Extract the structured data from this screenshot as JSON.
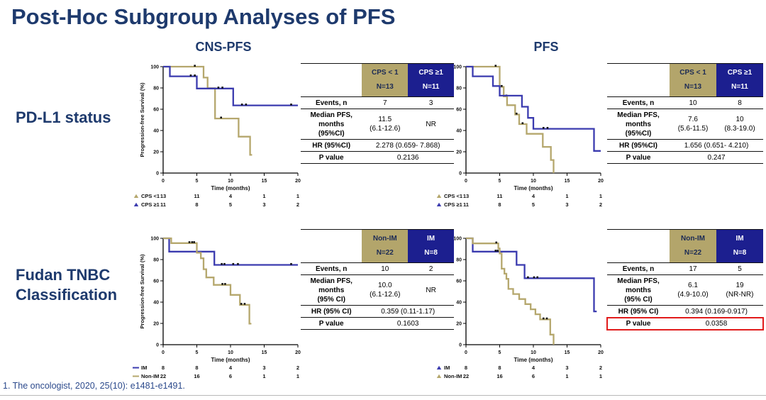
{
  "title": "Post-Hoc Subgroup Analyses of PFS",
  "footnote": "1. The oncologist, 2020, 25(10): e1481-e1491.",
  "columns": {
    "left": "CNS-PFS",
    "right": "PFS"
  },
  "row_labels": {
    "top": "PD-L1 status",
    "bottom": "Fudan TNBC\nClassification"
  },
  "colors": {
    "navy_text": "#1e3a6d",
    "curve_blue": "#3b3baf",
    "curve_tan": "#b5a76d",
    "header_tan_bg": "#b3a56b",
    "header_blue_bg": "#1c1f8f",
    "highlight_red": "#e11b1b"
  },
  "tables": [
    {
      "header": {
        "col1": "CPS < 1\nN=13",
        "col2": "CPS ≥1\nN=11"
      },
      "rows": {
        "events": {
          "label": "Events, n",
          "v1": "7",
          "v2": "3"
        },
        "median": {
          "label": "Median PFS,\nmonths\n(95%CI)",
          "v1": "11.5\n(6.1-12.6)",
          "v2": "NR"
        },
        "hr": {
          "label": "HR (95%CI)",
          "value": "2.278 (0.659- 7.868)"
        },
        "p": {
          "label": "P value",
          "value": "0.2136"
        }
      }
    },
    {
      "header": {
        "col1": "CPS < 1\nN=13",
        "col2": "CPS ≥1\nN=11"
      },
      "rows": {
        "events": {
          "label": "Events, n",
          "v1": "10",
          "v2": "8"
        },
        "median": {
          "label": "Median PFS,\nmonths\n(95%CI)",
          "v1": "7.6\n(5.6-11.5)",
          "v2": "10\n(8.3-19.0)"
        },
        "hr": {
          "label": "HR (95%CI)",
          "value": "1.656 (0.651- 4.210)"
        },
        "p": {
          "label": "P value",
          "value": "0.247"
        }
      }
    },
    {
      "header": {
        "col1": "Non-IM\nN=22",
        "col2": "IM\nN=8"
      },
      "rows": {
        "events": {
          "label": "Events, n",
          "v1": "10",
          "v2": "2"
        },
        "median": {
          "label": "Median PFS,\nmonths\n(95% CI)",
          "v1": "10.0\n(6.1-12.6)",
          "v2": "NR"
        },
        "hr": {
          "label": "HR (95% CI)",
          "value": "0.359 (0.11-1.17)"
        },
        "p": {
          "label": "P value",
          "value": "0.1603"
        }
      }
    },
    {
      "header": {
        "col1": "Non-IM\nN=22",
        "col2": "IM\nN=8"
      },
      "rows": {
        "events": {
          "label": "Events, n",
          "v1": "17",
          "v2": "5"
        },
        "median": {
          "label": "Median PFS,\nmonths\n(95% CI)",
          "v1": "6.1\n(4.9-10.0)",
          "v2": "19\n(NR-NR)"
        },
        "hr": {
          "label": "HR (95% CI)",
          "value": "0.394 (0.169-0.917)"
        },
        "p": {
          "label": "P value",
          "value": "0.0358",
          "highlight": true
        }
      }
    }
  ],
  "chart_data": [
    {
      "id": "cnspfs-pdl1",
      "type": "line",
      "subtype": "kaplan-meier-step",
      "column": "CNS-PFS",
      "group": "PD-L1 status",
      "xlabel": "Time (months)",
      "ylabel": "Progression-free Survival (%)",
      "xlim": [
        0,
        20
      ],
      "ylim": [
        0,
        100
      ],
      "xticks": [
        0,
        5,
        10,
        15,
        20
      ],
      "yticks": [
        0,
        20,
        40,
        60,
        80,
        100
      ],
      "series": [
        {
          "name": "CPS <1",
          "color": "#b5a76d",
          "steps": [
            [
              0,
              100
            ],
            [
              6,
              100
            ],
            [
              6,
              89.7
            ],
            [
              6.6,
              89.7
            ],
            [
              6.6,
              79.8
            ],
            [
              7.7,
              79.8
            ],
            [
              7.7,
              51.3
            ],
            [
              11.2,
              51.3
            ],
            [
              11.2,
              34.2
            ],
            [
              12.9,
              34.2
            ],
            [
              12.9,
              17.1
            ],
            [
              13.2,
              17.1
            ]
          ],
          "censors": [
            [
              4.7,
              100
            ],
            [
              8.6,
              51.3
            ]
          ]
        },
        {
          "name": "CPS ≥1",
          "color": "#3b3baf",
          "steps": [
            [
              0,
              100
            ],
            [
              1,
              100
            ],
            [
              1,
              90.9
            ],
            [
              5,
              90.9
            ],
            [
              5,
              79.5
            ],
            [
              10.4,
              79.5
            ],
            [
              10.4,
              63.6
            ],
            [
              20,
              63.6
            ]
          ],
          "censors": [
            [
              4.1,
              90.9
            ],
            [
              4.7,
              90.9
            ],
            [
              8.2,
              79.5
            ],
            [
              8.8,
              79.5
            ],
            [
              11.7,
              63.6
            ],
            [
              12.3,
              63.6
            ],
            [
              19,
              63.6
            ]
          ]
        }
      ],
      "risk_table": {
        "rows": [
          {
            "name": "CPS <1",
            "marker": "triangle",
            "color": "#b5a76d",
            "counts": [
              "13",
              "11",
              "4",
              "1",
              "1"
            ]
          },
          {
            "name": "CPS ≥1",
            "marker": "triangle",
            "color": "#3b3baf",
            "counts": [
              "11",
              "8",
              "5",
              "3",
              "2"
            ]
          }
        ]
      }
    },
    {
      "id": "pfs-pdl1",
      "type": "line",
      "subtype": "kaplan-meier-step",
      "column": "PFS",
      "group": "PD-L1 status",
      "xlabel": "Time (months)",
      "ylabel": "Progression-free Survival (%)",
      "xlim": [
        0,
        20
      ],
      "ylim": [
        0,
        100
      ],
      "xticks": [
        0,
        5,
        10,
        15,
        20
      ],
      "yticks": [
        0,
        20,
        40,
        60,
        80,
        100
      ],
      "series": [
        {
          "name": "CPS <1",
          "color": "#b5a76d",
          "steps": [
            [
              0,
              100
            ],
            [
              5,
              100
            ],
            [
              5,
              81
            ],
            [
              5.6,
              81
            ],
            [
              5.6,
              72
            ],
            [
              6.1,
              72
            ],
            [
              6.1,
              63.8
            ],
            [
              7.3,
              63.8
            ],
            [
              7.3,
              55
            ],
            [
              7.9,
              55
            ],
            [
              7.9,
              46
            ],
            [
              9,
              46
            ],
            [
              9,
              36.9
            ],
            [
              11.4,
              36.9
            ],
            [
              11.4,
              24.6
            ],
            [
              12.6,
              24.6
            ],
            [
              12.6,
              12.3
            ],
            [
              13,
              12.3
            ],
            [
              13,
              0
            ]
          ],
          "censors": [
            [
              4.4,
              100
            ],
            [
              5.3,
              81
            ],
            [
              6,
              72
            ],
            [
              7.5,
              55
            ],
            [
              8.4,
              46
            ]
          ]
        },
        {
          "name": "CPS ≥1",
          "color": "#3b3baf",
          "steps": [
            [
              0,
              100
            ],
            [
              1,
              100
            ],
            [
              1,
              90.9
            ],
            [
              4,
              90.9
            ],
            [
              4,
              81.8
            ],
            [
              5,
              81.8
            ],
            [
              5,
              72.7
            ],
            [
              8.3,
              72.7
            ],
            [
              8.3,
              62.3
            ],
            [
              9.2,
              62.3
            ],
            [
              9.2,
              51.9
            ],
            [
              10,
              51.9
            ],
            [
              10,
              41.6
            ],
            [
              19,
              41.6
            ],
            [
              19,
              20.8
            ],
            [
              20,
              20.8
            ]
          ],
          "censors": [
            [
              11.5,
              41.6
            ],
            [
              12.1,
              41.6
            ]
          ]
        }
      ],
      "risk_table": {
        "rows": [
          {
            "name": "CPS <1",
            "marker": "triangle",
            "color": "#b5a76d",
            "counts": [
              "13",
              "11",
              "4",
              "1",
              "1"
            ]
          },
          {
            "name": "CPS ≥1",
            "marker": "triangle",
            "color": "#3b3baf",
            "counts": [
              "11",
              "8",
              "5",
              "3",
              "2"
            ]
          }
        ]
      }
    },
    {
      "id": "cnspfs-fudan",
      "type": "line",
      "subtype": "kaplan-meier-step",
      "column": "CNS-PFS",
      "group": "Fudan TNBC Classification",
      "xlabel": "Time (months)",
      "ylabel": "Progression-free Survival (%)",
      "xlim": [
        0,
        20
      ],
      "ylim": [
        0,
        100
      ],
      "xticks": [
        0,
        5,
        10,
        15,
        20
      ],
      "yticks": [
        0,
        20,
        40,
        60,
        80,
        100
      ],
      "series": [
        {
          "name": "IM",
          "color": "#3b3baf",
          "steps": [
            [
              0,
              100
            ],
            [
              0.9,
              100
            ],
            [
              0.9,
              87.5
            ],
            [
              7.6,
              87.5
            ],
            [
              7.6,
              75
            ],
            [
              20,
              75
            ]
          ],
          "censors": [
            [
              8.7,
              75
            ],
            [
              9.1,
              75
            ],
            [
              10.4,
              75
            ],
            [
              11.1,
              75
            ],
            [
              19,
              75
            ]
          ]
        },
        {
          "name": "Non-IM",
          "color": "#b5a76d",
          "steps": [
            [
              0,
              100
            ],
            [
              1.2,
              100
            ],
            [
              1.2,
              95.5
            ],
            [
              5,
              95.5
            ],
            [
              5,
              86.4
            ],
            [
              5.6,
              86.4
            ],
            [
              5.6,
              81.2
            ],
            [
              6,
              81.2
            ],
            [
              6,
              70.9
            ],
            [
              6.4,
              70.9
            ],
            [
              6.4,
              63.2
            ],
            [
              7.5,
              63.2
            ],
            [
              7.5,
              56.2
            ],
            [
              10,
              56.2
            ],
            [
              10,
              46.8
            ],
            [
              11.4,
              46.8
            ],
            [
              11.4,
              37.5
            ],
            [
              12.8,
              37.5
            ],
            [
              12.8,
              19.7
            ],
            [
              13.1,
              19.7
            ]
          ],
          "censors": [
            [
              3.9,
              95.5
            ],
            [
              4.3,
              95.5
            ],
            [
              4.6,
              95.5
            ],
            [
              8.8,
              56.2
            ],
            [
              9.2,
              56.2
            ],
            [
              11.6,
              37.5
            ],
            [
              12.1,
              37.5
            ]
          ]
        }
      ],
      "risk_table": {
        "rows": [
          {
            "name": "IM",
            "marker": "dash",
            "color": "#3b3baf",
            "counts": [
              "8",
              "8",
              "4",
              "3",
              "2"
            ]
          },
          {
            "name": "Non-IM",
            "marker": "dash",
            "color": "#b5a76d",
            "counts": [
              "22",
              "16",
              "6",
              "1",
              "1"
            ]
          }
        ]
      }
    },
    {
      "id": "pfs-fudan",
      "type": "line",
      "subtype": "kaplan-meier-step",
      "column": "PFS",
      "group": "Fudan TNBC Classification",
      "xlabel": "Time (months)",
      "ylabel": "Progression-free Survival (%)",
      "xlim": [
        0,
        20
      ],
      "ylim": [
        0,
        100
      ],
      "xticks": [
        0,
        5,
        10,
        15,
        20
      ],
      "yticks": [
        0,
        20,
        40,
        60,
        80,
        100
      ],
      "series": [
        {
          "name": "IM",
          "color": "#3b3baf",
          "steps": [
            [
              0,
              100
            ],
            [
              1,
              100
            ],
            [
              1,
              87.5
            ],
            [
              7.5,
              87.5
            ],
            [
              7.5,
              75
            ],
            [
              8.7,
              75
            ],
            [
              8.7,
              62.5
            ],
            [
              19,
              62.5
            ],
            [
              19,
              31.3
            ],
            [
              19.4,
              31.3
            ]
          ],
          "censors": [
            [
              4.4,
              87.5
            ],
            [
              4.7,
              87.5
            ],
            [
              9.2,
              62.5
            ],
            [
              10.1,
              62.5
            ],
            [
              10.6,
              62.5
            ]
          ]
        },
        {
          "name": "Non-IM",
          "color": "#b5a76d",
          "steps": [
            [
              0,
              100
            ],
            [
              1,
              100
            ],
            [
              1,
              95.2
            ],
            [
              4.8,
              95.2
            ],
            [
              4.8,
              90.5
            ],
            [
              5,
              90.5
            ],
            [
              5,
              85.7
            ],
            [
              5.3,
              85.7
            ],
            [
              5.3,
              71.4
            ],
            [
              5.7,
              71.4
            ],
            [
              5.7,
              66.7
            ],
            [
              6,
              66.7
            ],
            [
              6,
              61.9
            ],
            [
              6.3,
              61.9
            ],
            [
              6.3,
              52.4
            ],
            [
              7,
              52.4
            ],
            [
              7,
              47.6
            ],
            [
              7.9,
              47.6
            ],
            [
              7.9,
              42.9
            ],
            [
              8.8,
              42.9
            ],
            [
              8.8,
              38.1
            ],
            [
              9.6,
              38.1
            ],
            [
              9.6,
              33.3
            ],
            [
              10.3,
              33.3
            ],
            [
              10.3,
              28.6
            ],
            [
              11,
              28.6
            ],
            [
              11,
              23.8
            ],
            [
              12.5,
              23.8
            ],
            [
              12.5,
              9.5
            ],
            [
              13,
              9.5
            ],
            [
              13,
              0
            ]
          ],
          "censors": [
            [
              4.5,
              95.2
            ],
            [
              11.5,
              23.8
            ],
            [
              12,
              23.8
            ]
          ]
        }
      ],
      "risk_table": {
        "rows": [
          {
            "name": "IM",
            "marker": "triangle",
            "color": "#3b3baf",
            "counts": [
              "8",
              "8",
              "4",
              "3",
              "2"
            ]
          },
          {
            "name": "Non-IM",
            "marker": "triangle",
            "color": "#b5a76d",
            "counts": [
              "22",
              "16",
              "6",
              "1",
              "1"
            ]
          }
        ]
      }
    }
  ]
}
